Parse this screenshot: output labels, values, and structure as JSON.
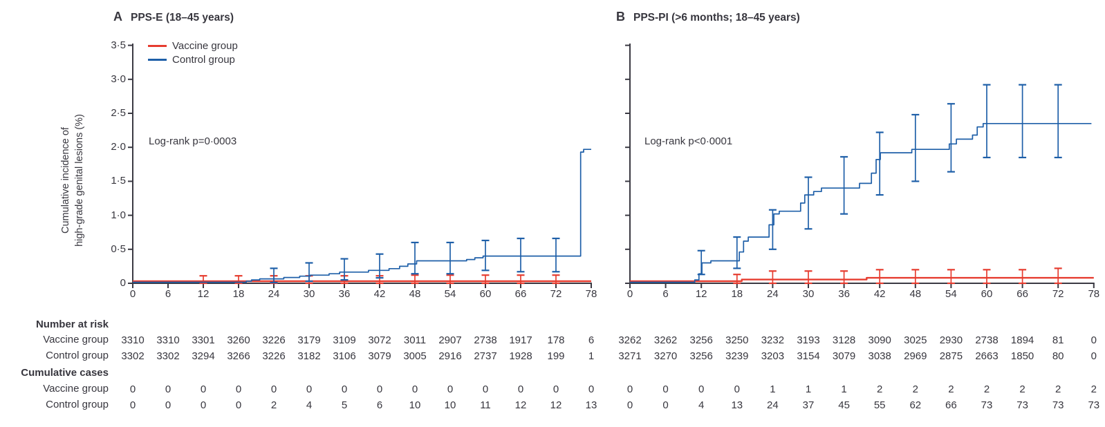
{
  "figure": {
    "y_axis_label": [
      "Cumulative incidence of",
      "high-grade genital lesions (%)"
    ],
    "legend": [
      {
        "label": "Vaccine group",
        "color": "#e63c2f"
      },
      {
        "label": "Control group",
        "color": "#1e5fa8"
      }
    ],
    "colors": {
      "vaccine": "#e63c2f",
      "control": "#1e5fa8",
      "axis": "#3a3942"
    },
    "tables": {
      "number_at_risk_label": "Number at risk",
      "cumulative_cases_label": "Cumulative cases",
      "vaccine_row_label": "Vaccine group",
      "control_row_label": "Control group"
    }
  },
  "chart_data": [
    {
      "type": "line",
      "subtype": "kaplan-meier-step",
      "panel_letter": "A",
      "title": "PPS-E (18–45 years)",
      "annotation": "Log-rank p=0·0003",
      "xlim": [
        0,
        78
      ],
      "ylim": [
        0,
        3.5
      ],
      "x_ticks": [
        0,
        6,
        12,
        18,
        24,
        30,
        36,
        42,
        48,
        54,
        60,
        66,
        72,
        78
      ],
      "y_ticks": [
        0,
        0.5,
        1.0,
        1.5,
        2.0,
        2.5,
        3.0,
        3.5
      ],
      "y_tick_labels": [
        "0",
        "0·5",
        "1·0",
        "1·5",
        "2·0",
        "2·5",
        "3·0",
        "3·5"
      ],
      "grid": false,
      "legend_position": "top-left",
      "series": [
        {
          "name": "Vaccine group",
          "key": "vaccine",
          "end_x": 78,
          "steps": [
            [
              0,
              0.03
            ]
          ],
          "error_bars": [
            {
              "x": 12,
              "lo": 0,
              "hi": 0.11
            },
            {
              "x": 18,
              "lo": 0,
              "hi": 0.11
            },
            {
              "x": 24,
              "lo": 0,
              "hi": 0.11
            },
            {
              "x": 30,
              "lo": 0,
              "hi": 0.11
            },
            {
              "x": 36,
              "lo": 0,
              "hi": 0.11
            },
            {
              "x": 42,
              "lo": 0,
              "hi": 0.11
            },
            {
              "x": 48,
              "lo": 0,
              "hi": 0.12
            },
            {
              "x": 54,
              "lo": 0,
              "hi": 0.12
            },
            {
              "x": 60,
              "lo": 0,
              "hi": 0.12
            },
            {
              "x": 66,
              "lo": 0,
              "hi": 0.12
            },
            {
              "x": 72,
              "lo": 0,
              "hi": 0.12
            }
          ]
        },
        {
          "name": "Control group",
          "key": "control",
          "end_x": 78,
          "steps": [
            [
              0,
              0.015
            ],
            [
              19.3,
              0.03
            ],
            [
              20.2,
              0.05
            ],
            [
              21.6,
              0.065
            ],
            [
              25.7,
              0.085
            ],
            [
              28.4,
              0.105
            ],
            [
              30.2,
              0.12
            ],
            [
              33.4,
              0.14
            ],
            [
              35.2,
              0.165
            ],
            [
              40.1,
              0.19
            ],
            [
              43.6,
              0.215
            ],
            [
              45.4,
              0.25
            ],
            [
              46.8,
              0.285
            ],
            [
              48.3,
              0.33
            ],
            [
              56.8,
              0.35
            ],
            [
              58.2,
              0.375
            ],
            [
              59.6,
              0.4
            ],
            [
              76.2,
              1.93
            ],
            [
              76.7,
              1.97
            ]
          ],
          "error_bars": [
            {
              "x": 24,
              "lo": 0.01,
              "hi": 0.22
            },
            {
              "x": 30,
              "lo": 0.03,
              "hi": 0.3
            },
            {
              "x": 36,
              "lo": 0.05,
              "hi": 0.36
            },
            {
              "x": 42,
              "lo": 0.08,
              "hi": 0.43
            },
            {
              "x": 48,
              "lo": 0.14,
              "hi": 0.6
            },
            {
              "x": 54,
              "lo": 0.14,
              "hi": 0.6
            },
            {
              "x": 60,
              "lo": 0.19,
              "hi": 0.63
            },
            {
              "x": 66,
              "lo": 0.17,
              "hi": 0.66
            },
            {
              "x": 72,
              "lo": 0.17,
              "hi": 0.66
            }
          ]
        }
      ],
      "number_at_risk": {
        "vaccine": [
          3310,
          3310,
          3301,
          3260,
          3226,
          3179,
          3109,
          3072,
          3011,
          2907,
          2738,
          1917,
          178,
          6
        ],
        "control": [
          3302,
          3302,
          3294,
          3266,
          3226,
          3182,
          3106,
          3079,
          3005,
          2916,
          2737,
          1928,
          199,
          1
        ]
      },
      "cumulative_cases": {
        "vaccine": [
          0,
          0,
          0,
          0,
          0,
          0,
          0,
          0,
          0,
          0,
          0,
          0,
          0,
          0
        ],
        "control": [
          0,
          0,
          0,
          0,
          2,
          4,
          5,
          6,
          10,
          10,
          11,
          12,
          12,
          13
        ]
      }
    },
    {
      "type": "line",
      "subtype": "kaplan-meier-step",
      "panel_letter": "B",
      "title": "PPS-PI (>6 months; 18–45 years)",
      "annotation": "Log-rank p<0·0001",
      "xlim": [
        0,
        78
      ],
      "ylim": [
        0,
        3.5
      ],
      "x_ticks": [
        0,
        6,
        12,
        18,
        24,
        30,
        36,
        42,
        48,
        54,
        60,
        66,
        72,
        78
      ],
      "y_ticks": [
        0,
        0.5,
        1.0,
        1.5,
        2.0,
        2.5,
        3.0,
        3.5
      ],
      "grid": false,
      "series": [
        {
          "name": "Vaccine group",
          "key": "vaccine",
          "end_x": 78,
          "steps": [
            [
              0,
              0.03
            ],
            [
              18.8,
              0.055
            ],
            [
              39.8,
              0.08
            ]
          ],
          "error_bars": [
            {
              "x": 18,
              "lo": 0,
              "hi": 0.13
            },
            {
              "x": 24,
              "lo": 0,
              "hi": 0.18
            },
            {
              "x": 30,
              "lo": 0,
              "hi": 0.18
            },
            {
              "x": 36,
              "lo": 0,
              "hi": 0.18
            },
            {
              "x": 42,
              "lo": 0,
              "hi": 0.2
            },
            {
              "x": 48,
              "lo": 0,
              "hi": 0.2
            },
            {
              "x": 54,
              "lo": 0,
              "hi": 0.2
            },
            {
              "x": 60,
              "lo": 0,
              "hi": 0.2
            },
            {
              "x": 66,
              "lo": 0,
              "hi": 0.2
            },
            {
              "x": 72,
              "lo": 0,
              "hi": 0.22
            }
          ]
        },
        {
          "name": "Control group",
          "key": "control",
          "end_x": 77.6,
          "steps": [
            [
              0,
              0.015
            ],
            [
              10.9,
              0.05
            ],
            [
              11.6,
              0.14
            ],
            [
              12.1,
              0.3
            ],
            [
              13.6,
              0.33
            ],
            [
              18.4,
              0.46
            ],
            [
              19.1,
              0.62
            ],
            [
              19.9,
              0.68
            ],
            [
              23.4,
              0.86
            ],
            [
              24.2,
              1.02
            ],
            [
              25.1,
              1.06
            ],
            [
              28.7,
              1.18
            ],
            [
              29.4,
              1.3
            ],
            [
              30.9,
              1.35
            ],
            [
              32.2,
              1.4
            ],
            [
              38.6,
              1.47
            ],
            [
              40.6,
              1.62
            ],
            [
              41.4,
              1.82
            ],
            [
              42.1,
              1.92
            ],
            [
              47.4,
              1.97
            ],
            [
              53.7,
              2.05
            ],
            [
              54.9,
              2.12
            ],
            [
              57.6,
              2.18
            ],
            [
              58.4,
              2.3
            ],
            [
              59.4,
              2.35
            ]
          ],
          "error_bars": [
            {
              "x": 12,
              "lo": 0.13,
              "hi": 0.48
            },
            {
              "x": 18,
              "lo": 0.22,
              "hi": 0.68
            },
            {
              "x": 24,
              "lo": 0.5,
              "hi": 1.08
            },
            {
              "x": 30,
              "lo": 0.8,
              "hi": 1.56
            },
            {
              "x": 36,
              "lo": 1.02,
              "hi": 1.86
            },
            {
              "x": 42,
              "lo": 1.3,
              "hi": 2.22
            },
            {
              "x": 48,
              "lo": 1.5,
              "hi": 2.48
            },
            {
              "x": 54,
              "lo": 1.64,
              "hi": 2.64
            },
            {
              "x": 60,
              "lo": 1.85,
              "hi": 2.92
            },
            {
              "x": 66,
              "lo": 1.85,
              "hi": 2.92
            },
            {
              "x": 72,
              "lo": 1.85,
              "hi": 2.92
            }
          ]
        }
      ],
      "number_at_risk": {
        "vaccine": [
          3262,
          3262,
          3256,
          3250,
          3232,
          3193,
          3128,
          3090,
          3025,
          2930,
          2738,
          1894,
          81,
          0
        ],
        "control": [
          3271,
          3270,
          3256,
          3239,
          3203,
          3154,
          3079,
          3038,
          2969,
          2875,
          2663,
          1850,
          80,
          0
        ]
      },
      "cumulative_cases": {
        "vaccine": [
          0,
          0,
          0,
          0,
          1,
          1,
          1,
          2,
          2,
          2,
          2,
          2,
          2,
          2
        ],
        "control": [
          0,
          0,
          4,
          13,
          24,
          37,
          45,
          55,
          62,
          66,
          73,
          73,
          73,
          73
        ]
      }
    }
  ]
}
